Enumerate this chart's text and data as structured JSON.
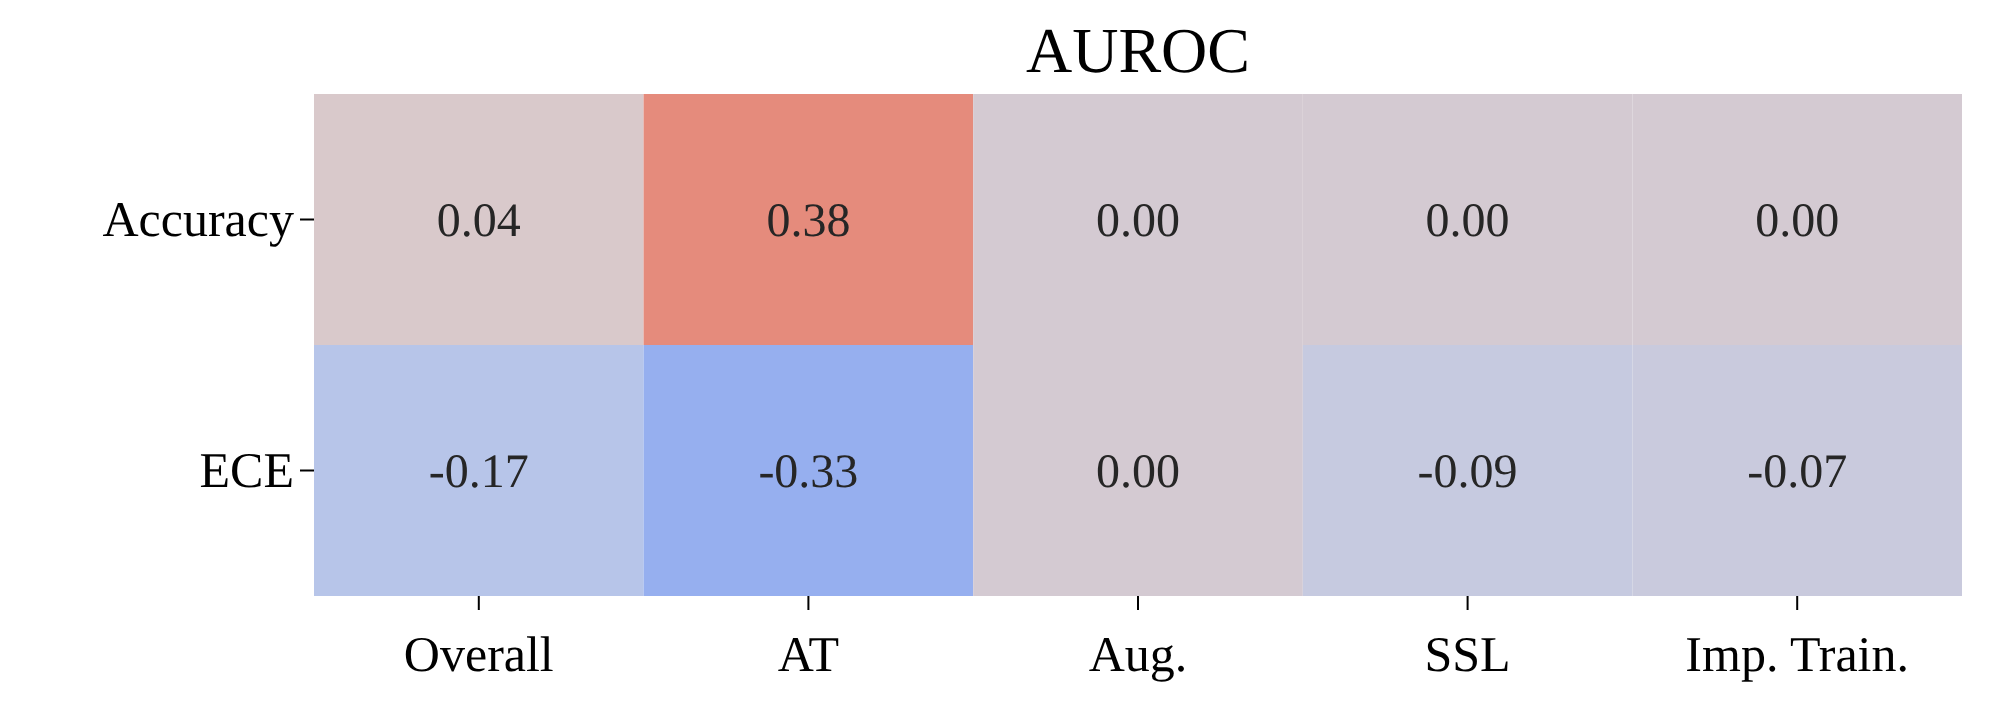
{
  "chart_data": {
    "type": "heatmap",
    "title": "AUROC",
    "categories": [
      "Overall",
      "AT",
      "Aug.",
      "SSL",
      "Imp. Train."
    ],
    "y_categories": [
      "Accuracy",
      "ECE"
    ],
    "cells": [
      [
        0.04,
        0.38,
        0.0,
        0.0,
        0.0
      ],
      [
        -0.17,
        -0.33,
        0.0,
        -0.09,
        -0.07
      ]
    ],
    "cell_labels": [
      [
        "0.04",
        "0.38",
        "0.00",
        "0.00",
        "0.00"
      ],
      [
        "-0.17",
        "-0.33",
        "0.00",
        "-0.09",
        "-0.07"
      ]
    ]
  }
}
